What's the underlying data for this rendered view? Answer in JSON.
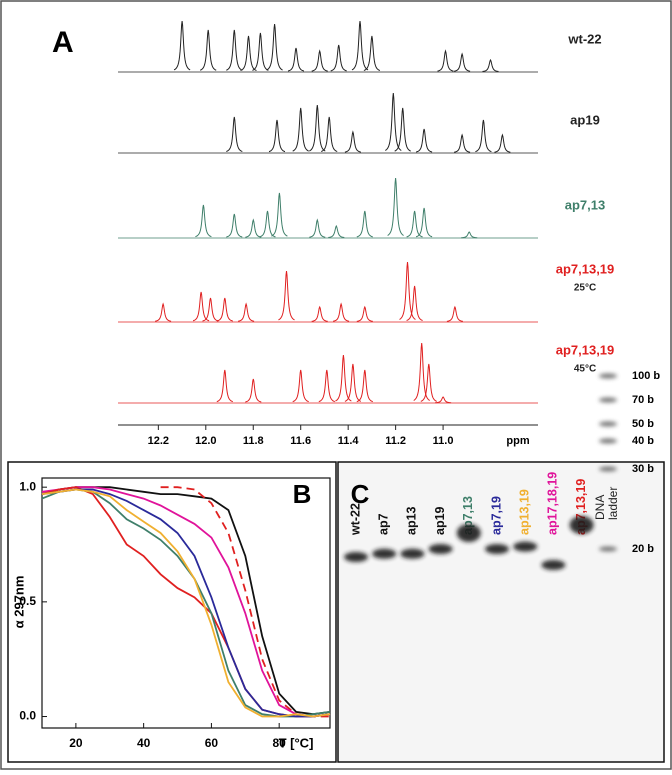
{
  "chart_data": [
    {
      "type": "spectrum",
      "panel_label": "A",
      "x_label": "ppm",
      "xlim": [
        12.37,
        10.6
      ],
      "xticks": [
        12.2,
        {
          "value": 12,
          "label": "12.0"
        },
        11.8,
        11.6,
        11.4,
        11.2,
        {
          "value": 11,
          "label": "11.0"
        }
      ],
      "series": [
        {
          "name": "wt-22",
          "color": "#222222",
          "peaks": [
            12.1,
            11.99,
            11.88,
            11.82,
            11.77,
            11.71,
            11.62,
            11.52,
            11.44,
            11.35,
            11.3,
            10.99,
            10.92,
            10.8
          ],
          "heights": [
            0.85,
            0.7,
            0.7,
            0.6,
            0.65,
            0.8,
            0.4,
            0.35,
            0.45,
            0.85,
            0.6,
            0.35,
            0.3,
            0.2
          ]
        },
        {
          "name": "ap19",
          "color": "#222222",
          "peaks": [
            11.88,
            11.7,
            11.6,
            11.53,
            11.48,
            11.38,
            11.21,
            11.17,
            11.08,
            10.92,
            10.83,
            10.75
          ],
          "heights": [
            0.6,
            0.55,
            0.75,
            0.8,
            0.6,
            0.35,
            1.0,
            0.75,
            0.4,
            0.3,
            0.55,
            0.3
          ]
        },
        {
          "name": "ap7,13",
          "color": "#3f7f6a",
          "peaks": [
            12.01,
            11.88,
            11.8,
            11.74,
            11.69,
            11.53,
            11.45,
            11.33,
            11.2,
            11.12,
            11.08,
            10.89
          ],
          "heights": [
            0.55,
            0.4,
            0.3,
            0.45,
            0.75,
            0.3,
            0.2,
            0.45,
            1.0,
            0.45,
            0.5,
            0.1
          ]
        },
        {
          "name": "ap7,13,19",
          "note": "25°C",
          "color": "#e02020",
          "peaks": [
            12.18,
            12.02,
            11.98,
            11.92,
            11.83,
            11.66,
            11.52,
            11.43,
            11.33,
            11.15,
            11.12,
            10.95
          ],
          "heights": [
            0.3,
            0.5,
            0.4,
            0.4,
            0.3,
            0.85,
            0.25,
            0.3,
            0.25,
            1.0,
            0.6,
            0.25
          ]
        },
        {
          "name": "ap7,13,19",
          "note": "45°C",
          "color": "#e02020",
          "peaks": [
            11.92,
            11.8,
            11.6,
            11.49,
            11.42,
            11.38,
            11.33,
            11.09,
            11.06,
            11.0
          ],
          "heights": [
            0.55,
            0.4,
            0.55,
            0.55,
            0.8,
            0.65,
            0.55,
            1.0,
            0.65,
            0.1
          ]
        }
      ]
    },
    {
      "type": "line",
      "panel_label": "B",
      "x_label": "T [°C]",
      "y_label": "α 297nm",
      "x": [
        10,
        15,
        20,
        25,
        30,
        35,
        40,
        45,
        50,
        55,
        60,
        65,
        70,
        75,
        80,
        85,
        90,
        95
      ],
      "xlim": [
        10,
        95
      ],
      "xticks": [
        20,
        40,
        60,
        80
      ],
      "ylim": [
        -0.05,
        1.04
      ],
      "yticks": [
        {
          "value": 0,
          "label": "0.0"
        },
        {
          "value": 0.5,
          "label": "0.5"
        },
        {
          "value": 1,
          "label": "1.0"
        }
      ],
      "series": [
        {
          "color": "#111111",
          "values": [
            0.97,
            0.99,
            1.0,
            1.0,
            1.0,
            0.99,
            0.98,
            0.97,
            0.97,
            0.96,
            0.95,
            0.9,
            0.7,
            0.35,
            0.1,
            0.02,
            0.01,
            0.02
          ]
        },
        {
          "color": "#e02020",
          "dashed": true,
          "values": [
            null,
            null,
            null,
            null,
            null,
            null,
            null,
            1.0,
            1.0,
            0.99,
            0.93,
            0.8,
            0.55,
            0.25,
            0.07,
            0.01,
            0.0,
            0.0
          ]
        },
        {
          "color": "#e0139a",
          "values": [
            0.98,
            0.99,
            1.0,
            1.0,
            0.99,
            0.97,
            0.95,
            0.92,
            0.88,
            0.84,
            0.78,
            0.65,
            0.45,
            0.2,
            0.05,
            0.01,
            0.0,
            0.01
          ]
        },
        {
          "color": "#e02020",
          "values": [
            0.97,
            0.99,
            1.0,
            0.97,
            0.87,
            0.75,
            0.7,
            0.62,
            0.56,
            0.52,
            0.45,
            0.3,
            0.12,
            0.03,
            0.01,
            0.0,
            0.0,
            0.01
          ]
        },
        {
          "color": "#3f7f6a",
          "values": [
            0.95,
            0.98,
            0.99,
            0.98,
            0.93,
            0.86,
            0.82,
            0.77,
            0.7,
            0.6,
            0.45,
            0.2,
            0.05,
            0.01,
            0.0,
            0.0,
            0.01,
            0.02
          ]
        },
        {
          "color": "#2a2a9a",
          "values": [
            0.97,
            0.98,
            0.99,
            0.99,
            0.97,
            0.94,
            0.9,
            0.86,
            0.8,
            0.7,
            0.52,
            0.3,
            0.12,
            0.03,
            0.01,
            0.0,
            0.0,
            0.01
          ]
        },
        {
          "color": "#f0b030",
          "values": [
            0.97,
            0.98,
            0.99,
            0.98,
            0.96,
            0.9,
            0.85,
            0.8,
            0.72,
            0.6,
            0.4,
            0.15,
            0.04,
            0.0,
            0.0,
            0.01,
            0.0,
            0.01
          ]
        }
      ]
    },
    {
      "type": "gel",
      "panel_label": "C",
      "ladder_label": [
        "DNA",
        "ladder"
      ],
      "ladder": [
        {
          "value": 100,
          "label": "100 b"
        },
        {
          "value": 70,
          "label": "70 b"
        },
        {
          "value": 50,
          "label": "50 b"
        },
        {
          "value": 40,
          "label": "40 b"
        },
        {
          "value": 30,
          "label": "30 b"
        },
        {
          "value": 20,
          "label": "20 b"
        }
      ],
      "lanes": [
        {
          "name": "wt-22",
          "color": "#111111",
          "band": 19
        },
        {
          "name": "ap7",
          "color": "#111111",
          "band": 19.4
        },
        {
          "name": "ap13",
          "color": "#111111",
          "band": 19.4
        },
        {
          "name": "ap19",
          "color": "#111111",
          "band": 20
        },
        {
          "name": "ap7,13",
          "color": "#3f7f6a",
          "band": 22
        },
        {
          "name": "ap7,19",
          "color": "#2a2a9a",
          "band": 20
        },
        {
          "name": "ap13,19",
          "color": "#f0b030",
          "band": 20.3
        },
        {
          "name": "ap17,18,19",
          "color": "#e0139a",
          "band": 18
        },
        {
          "name": "ap7,13,19",
          "color": "#e02020",
          "band": 23
        }
      ]
    }
  ]
}
